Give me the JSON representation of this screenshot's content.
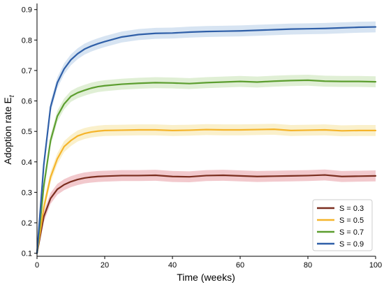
{
  "chart_data": {
    "type": "line",
    "title": "",
    "xlabel": "Time (weeks)",
    "ylabel": "Adoption rate E",
    "ylabel_subscript": "t",
    "xlim": [
      0,
      100
    ],
    "ylim": [
      0.09,
      0.92
    ],
    "xticks": [
      0,
      20,
      40,
      60,
      80,
      100
    ],
    "yticks": [
      0.1,
      0.2,
      0.3,
      0.4,
      0.5,
      0.6,
      0.7,
      0.8,
      0.9
    ],
    "xtick_labels": [
      "0",
      "20",
      "40",
      "60",
      "80",
      "100"
    ],
    "ytick_labels": [
      "0.1",
      "0.2",
      "0.3",
      "0.4",
      "0.5",
      "0.6",
      "0.7",
      "0.8",
      "0.9"
    ],
    "grid": false,
    "legend_position": "bottom-right",
    "band_halfwidth": 0.018,
    "x": [
      0,
      2,
      4,
      6,
      8,
      10,
      12,
      14,
      16,
      18,
      20,
      25,
      30,
      35,
      40,
      45,
      50,
      55,
      60,
      65,
      70,
      75,
      80,
      85,
      90,
      95,
      100
    ],
    "series": [
      {
        "name": "S = 0.3",
        "color": "#7b2e1f",
        "band_color": "#e79ca4",
        "values": [
          0.1,
          0.22,
          0.28,
          0.31,
          0.325,
          0.335,
          0.342,
          0.347,
          0.35,
          0.352,
          0.353,
          0.355,
          0.355,
          0.356,
          0.352,
          0.351,
          0.355,
          0.356,
          0.354,
          0.352,
          0.353,
          0.354,
          0.355,
          0.357,
          0.352,
          0.353,
          0.354
        ]
      },
      {
        "name": "S = 0.5",
        "color": "#f5b42a",
        "band_color": "#f6e3a0",
        "values": [
          0.1,
          0.25,
          0.35,
          0.41,
          0.45,
          0.47,
          0.485,
          0.493,
          0.498,
          0.501,
          0.503,
          0.504,
          0.505,
          0.505,
          0.503,
          0.504,
          0.506,
          0.505,
          0.505,
          0.506,
          0.507,
          0.503,
          0.504,
          0.505,
          0.502,
          0.503,
          0.503
        ]
      },
      {
        "name": "S = 0.7",
        "color": "#5c9e2f",
        "band_color": "#c6e1b2",
        "values": [
          0.1,
          0.32,
          0.47,
          0.55,
          0.59,
          0.615,
          0.627,
          0.635,
          0.642,
          0.647,
          0.65,
          0.655,
          0.658,
          0.66,
          0.659,
          0.657,
          0.66,
          0.662,
          0.664,
          0.662,
          0.665,
          0.667,
          0.668,
          0.665,
          0.664,
          0.664,
          0.663
        ]
      },
      {
        "name": "S = 0.9",
        "color": "#2f5fa8",
        "band_color": "#b7cde8",
        "values": [
          0.1,
          0.39,
          0.58,
          0.66,
          0.705,
          0.735,
          0.755,
          0.77,
          0.78,
          0.788,
          0.795,
          0.81,
          0.818,
          0.822,
          0.823,
          0.826,
          0.828,
          0.829,
          0.83,
          0.832,
          0.834,
          0.836,
          0.837,
          0.838,
          0.84,
          0.842,
          0.843
        ]
      }
    ]
  }
}
